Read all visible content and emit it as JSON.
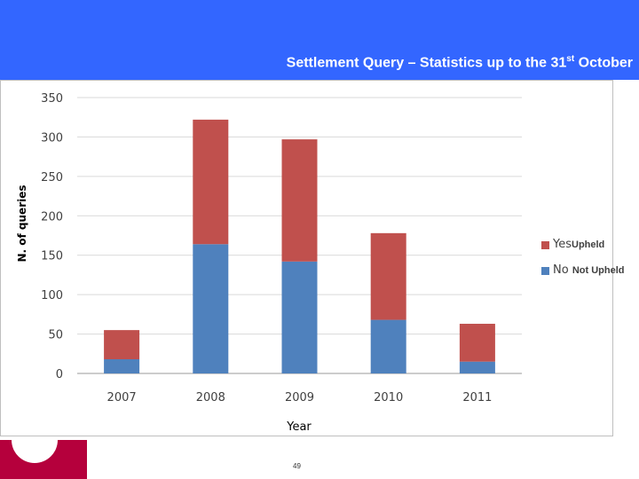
{
  "slide": {
    "title_main": "Settlement Query – Statistics up to the 31",
    "title_sup": "st",
    "title_end": " October",
    "page_number": "49"
  },
  "colors": {
    "header": "#3366ff",
    "series_no": "#4f81bd",
    "series_yes": "#c0504d",
    "logo": "#b5003c"
  },
  "legend": {
    "yes_label": "Yes",
    "yes_note": "Upheld",
    "no_label": "No",
    "no_note": "Not Upheld"
  },
  "chart_data": {
    "type": "bar",
    "stacked": true,
    "categories": [
      "2007",
      "2008",
      "2009",
      "2010",
      "2011"
    ],
    "series": [
      {
        "name": "No",
        "values": [
          18,
          164,
          142,
          68,
          15
        ]
      },
      {
        "name": "Yes",
        "values": [
          37,
          158,
          155,
          110,
          48
        ]
      }
    ],
    "xlabel": "Year",
    "ylabel": "N. of queries",
    "ylim": [
      0,
      350
    ],
    "yticks": [
      0,
      50,
      100,
      150,
      200,
      250,
      300,
      350
    ],
    "grid": true,
    "legend_position": "right"
  }
}
